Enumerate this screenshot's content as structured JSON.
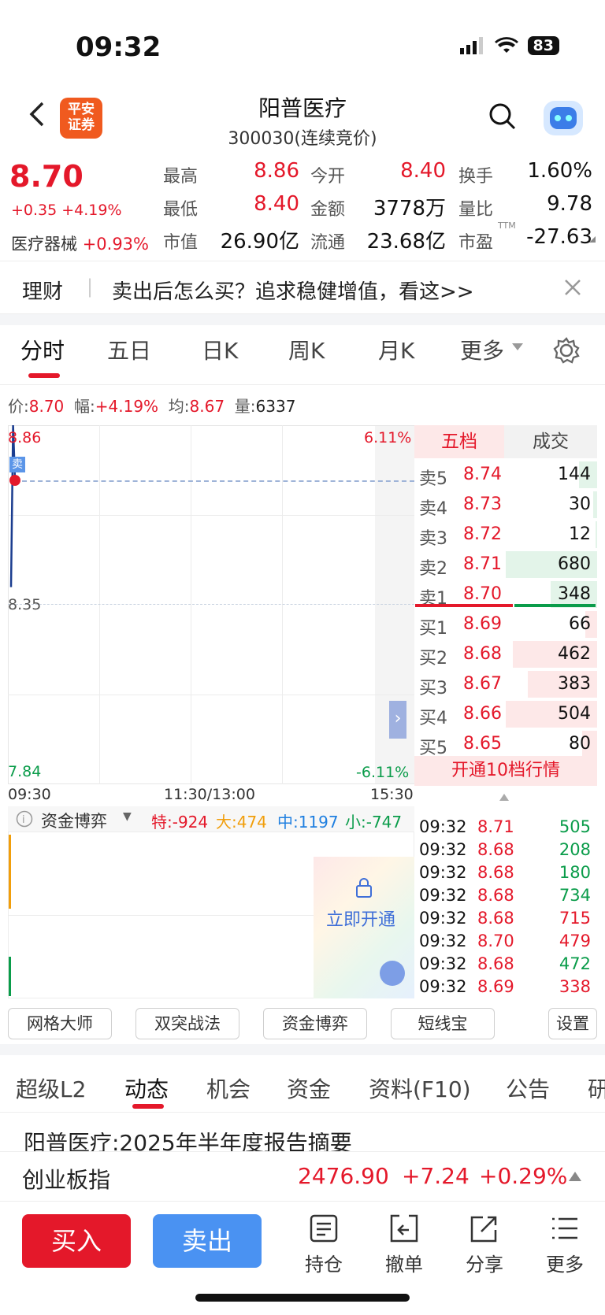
{
  "status_bar": {
    "time": "09:32",
    "battery": "83"
  },
  "header": {
    "logo_text": "平安\n证券",
    "title": "阳普医疗",
    "subtitle": "300030(连续竞价)"
  },
  "quote": {
    "price": "8.70",
    "change": "+0.35 +4.19%",
    "industry": "医疗器械",
    "industry_change": "+0.93%",
    "stats": [
      {
        "label": "最高",
        "value": "8.86",
        "color": "red"
      },
      {
        "label": "今开",
        "value": "8.40",
        "color": "red"
      },
      {
        "label": "换手",
        "value": "1.60%",
        "color": "black"
      },
      {
        "label": "最低",
        "value": "8.40",
        "color": "red"
      },
      {
        "label": "金额",
        "value": "3778万",
        "color": "black"
      },
      {
        "label": "量比",
        "value": "9.78",
        "color": "black"
      },
      {
        "label": "市值",
        "value": "26.90亿",
        "color": "black"
      },
      {
        "label": "流通",
        "value": "23.68亿",
        "color": "black"
      },
      {
        "label": "市盈",
        "value": "-27.63",
        "color": "black",
        "sup": "TTM"
      }
    ]
  },
  "banner": {
    "tag": "理财",
    "text": "卖出后怎么买？追求稳健增值，看这>>"
  },
  "chart_tabs": [
    "分时",
    "五日",
    "日K",
    "周K",
    "月K",
    "更多"
  ],
  "info_line": {
    "price_label": "价:",
    "price": "8.70",
    "amp_label": "幅:",
    "amp": "+4.19%",
    "avg_label": "均:",
    "avg": "8.67",
    "vol_label": "量:",
    "vol": "6337"
  },
  "chart": {
    "y_top": "8.86",
    "y_mid": "8.35",
    "y_bottom": "7.84",
    "pct_top": "6.11%",
    "pct_bottom": "-6.11%",
    "x_start": "09:30",
    "x_mid": "11:30/13:00",
    "x_end": "15:30",
    "marker": "卖"
  },
  "chart_data": {
    "type": "line",
    "x": [
      "09:30",
      "09:31",
      "09:32"
    ],
    "y": [
      8.4,
      8.86,
      8.7
    ],
    "ylim": [
      7.84,
      8.86
    ]
  },
  "capital": {
    "title": "资金博弈",
    "te": "特:-924",
    "da": "大:474",
    "zhong": "中:1197",
    "xiao": "小:-747",
    "unlock": "立即开通"
  },
  "orderbook": {
    "tabs": [
      "五档",
      "成交"
    ],
    "asks": [
      {
        "label": "卖5",
        "price": "8.74",
        "vol": "144",
        "fill": 0.2
      },
      {
        "label": "卖4",
        "price": "8.73",
        "vol": "30",
        "fill": 0.04
      },
      {
        "label": "卖3",
        "price": "8.72",
        "vol": "12",
        "fill": 0.02
      },
      {
        "label": "卖2",
        "price": "8.71",
        "vol": "680",
        "fill": 1.0
      },
      {
        "label": "卖1",
        "price": "8.70",
        "vol": "348",
        "fill": 0.51
      }
    ],
    "bids": [
      {
        "label": "买1",
        "price": "8.69",
        "vol": "66",
        "fill": 0.13
      },
      {
        "label": "买2",
        "price": "8.68",
        "vol": "462",
        "fill": 0.92
      },
      {
        "label": "买3",
        "price": "8.67",
        "vol": "383",
        "fill": 0.76
      },
      {
        "label": "买4",
        "price": "8.66",
        "vol": "504",
        "fill": 1.0
      },
      {
        "label": "买5",
        "price": "8.65",
        "vol": "80",
        "fill": 0.16
      }
    ],
    "upgrade": "开通10档行情"
  },
  "ticks": [
    {
      "time": "09:32",
      "price": "8.71",
      "vol": "505",
      "pc": "red",
      "vc": "green"
    },
    {
      "time": "09:32",
      "price": "8.68",
      "vol": "208",
      "pc": "red",
      "vc": "green"
    },
    {
      "time": "09:32",
      "price": "8.68",
      "vol": "180",
      "pc": "red",
      "vc": "green"
    },
    {
      "time": "09:32",
      "price": "8.68",
      "vol": "734",
      "pc": "red",
      "vc": "green"
    },
    {
      "time": "09:32",
      "price": "8.68",
      "vol": "715",
      "pc": "red",
      "vc": "red"
    },
    {
      "time": "09:32",
      "price": "8.70",
      "vol": "479",
      "pc": "red",
      "vc": "red"
    },
    {
      "time": "09:32",
      "price": "8.68",
      "vol": "472",
      "pc": "red",
      "vc": "green"
    },
    {
      "time": "09:32",
      "price": "8.69",
      "vol": "338",
      "pc": "red",
      "vc": "red"
    }
  ],
  "tools": [
    "网格大师",
    "双突战法",
    "资金博弈",
    "短线宝",
    "设置"
  ],
  "bottom_tabs": [
    "超级L2",
    "动态",
    "机会",
    "资金",
    "资料(F10)",
    "公告",
    "研"
  ],
  "news_title": "阳普医疗:2025年半年度报告摘要",
  "index": {
    "name": "创业板指",
    "value": "2476.90",
    "change": "+7.24",
    "pct": "+0.29%"
  },
  "actions": {
    "buy": "买入",
    "sell": "卖出",
    "items": [
      "持仓",
      "撤单",
      "分享",
      "更多"
    ]
  }
}
